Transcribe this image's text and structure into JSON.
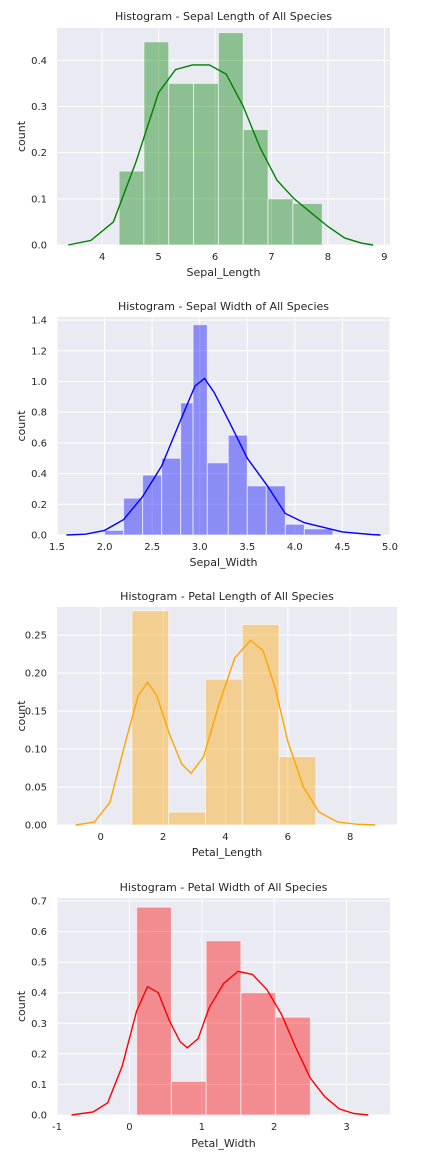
{
  "figure": {
    "background": "#ffffff",
    "axes_background": "#eaeaf2",
    "grid_color": "#ffffff"
  },
  "chart_data": [
    {
      "type": "bar",
      "title": "Histogram - Sepal Length of All Species",
      "xlabel": "Sepal_Length",
      "ylabel": "count",
      "xlim": [
        3.2,
        9.1
      ],
      "ylim": [
        0,
        0.47
      ],
      "xticks": [
        "4",
        "5",
        "6",
        "7",
        "8",
        "9"
      ],
      "yticks": [
        "0.0",
        "0.1",
        "0.2",
        "0.3",
        "0.4"
      ],
      "color": "#008000",
      "bins": [
        {
          "x0": 4.3,
          "x1": 4.74,
          "value": 0.16
        },
        {
          "x0": 4.74,
          "x1": 5.18,
          "value": 0.44
        },
        {
          "x0": 5.18,
          "x1": 5.62,
          "value": 0.35
        },
        {
          "x0": 5.62,
          "x1": 6.06,
          "value": 0.35
        },
        {
          "x0": 6.06,
          "x1": 6.5,
          "value": 0.46
        },
        {
          "x0": 6.5,
          "x1": 6.94,
          "value": 0.25
        },
        {
          "x0": 6.94,
          "x1": 7.38,
          "value": 0.1
        },
        {
          "x0": 7.38,
          "x1": 7.9,
          "value": 0.09
        }
      ],
      "kde": [
        [
          3.4,
          0.0
        ],
        [
          3.8,
          0.01
        ],
        [
          4.2,
          0.05
        ],
        [
          4.6,
          0.18
        ],
        [
          5.0,
          0.33
        ],
        [
          5.3,
          0.38
        ],
        [
          5.6,
          0.39
        ],
        [
          5.9,
          0.39
        ],
        [
          6.2,
          0.37
        ],
        [
          6.5,
          0.3
        ],
        [
          6.8,
          0.21
        ],
        [
          7.1,
          0.14
        ],
        [
          7.4,
          0.1
        ],
        [
          7.7,
          0.07
        ],
        [
          8.0,
          0.04
        ],
        [
          8.3,
          0.015
        ],
        [
          8.6,
          0.004
        ],
        [
          8.8,
          0.0
        ]
      ]
    },
    {
      "type": "bar",
      "title": "Histogram - Sepal Width of All Species",
      "xlabel": "Sepal_Width",
      "ylabel": "count",
      "xlim": [
        1.5,
        5.0
      ],
      "ylim": [
        0,
        1.42
      ],
      "xticks": [
        "1.5",
        "2.0",
        "2.5",
        "3.0",
        "3.5",
        "4.0",
        "4.5",
        "5.0"
      ],
      "yticks": [
        "0.0",
        "0.2",
        "0.4",
        "0.6",
        "0.8",
        "1.0",
        "1.2",
        "1.4"
      ],
      "color": "#0000ff",
      "bins": [
        {
          "x0": 2.0,
          "x1": 2.2,
          "value": 0.03
        },
        {
          "x0": 2.2,
          "x1": 2.4,
          "value": 0.24
        },
        {
          "x0": 2.4,
          "x1": 2.6,
          "value": 0.39
        },
        {
          "x0": 2.6,
          "x1": 2.8,
          "value": 0.5
        },
        {
          "x0": 2.8,
          "x1": 2.93,
          "value": 0.86
        },
        {
          "x0": 2.93,
          "x1": 3.08,
          "value": 1.37
        },
        {
          "x0": 3.08,
          "x1": 3.3,
          "value": 0.47
        },
        {
          "x0": 3.3,
          "x1": 3.5,
          "value": 0.65
        },
        {
          "x0": 3.5,
          "x1": 3.7,
          "value": 0.32
        },
        {
          "x0": 3.7,
          "x1": 3.9,
          "value": 0.32
        },
        {
          "x0": 3.9,
          "x1": 4.1,
          "value": 0.07
        },
        {
          "x0": 4.1,
          "x1": 4.4,
          "value": 0.04
        }
      ],
      "kde": [
        [
          1.6,
          0.0
        ],
        [
          1.8,
          0.005
        ],
        [
          2.0,
          0.03
        ],
        [
          2.2,
          0.1
        ],
        [
          2.4,
          0.25
        ],
        [
          2.6,
          0.45
        ],
        [
          2.8,
          0.75
        ],
        [
          2.95,
          0.97
        ],
        [
          3.05,
          1.02
        ],
        [
          3.15,
          0.93
        ],
        [
          3.3,
          0.75
        ],
        [
          3.5,
          0.5
        ],
        [
          3.7,
          0.33
        ],
        [
          3.9,
          0.14
        ],
        [
          4.1,
          0.08
        ],
        [
          4.3,
          0.05
        ],
        [
          4.5,
          0.02
        ],
        [
          4.8,
          0.003
        ],
        [
          4.9,
          0.0
        ]
      ]
    },
    {
      "type": "bar",
      "title": "Histogram - Petal Length of All Species",
      "xlabel": "Petal_Length",
      "ylabel": "count",
      "xlim": [
        -1.4,
        9.5
      ],
      "ylim": [
        0,
        0.287
      ],
      "xticks": [
        "0",
        "2",
        "4",
        "6",
        "8"
      ],
      "yticks": [
        "0.00",
        "0.05",
        "0.10",
        "0.15",
        "0.20",
        "0.25"
      ],
      "color": "#ffa500",
      "bins": [
        {
          "x0": 1.0,
          "x1": 2.18,
          "value": 0.282
        },
        {
          "x0": 2.18,
          "x1": 3.36,
          "value": 0.017
        },
        {
          "x0": 3.36,
          "x1": 4.54,
          "value": 0.192
        },
        {
          "x0": 4.54,
          "x1": 5.72,
          "value": 0.264
        },
        {
          "x0": 5.72,
          "x1": 6.9,
          "value": 0.09
        }
      ],
      "kde": [
        [
          -0.8,
          0.0
        ],
        [
          -0.2,
          0.004
        ],
        [
          0.3,
          0.03
        ],
        [
          0.8,
          0.11
        ],
        [
          1.2,
          0.17
        ],
        [
          1.5,
          0.188
        ],
        [
          1.8,
          0.17
        ],
        [
          2.2,
          0.12
        ],
        [
          2.6,
          0.08
        ],
        [
          2.9,
          0.068
        ],
        [
          3.3,
          0.09
        ],
        [
          3.8,
          0.16
        ],
        [
          4.3,
          0.22
        ],
        [
          4.8,
          0.243
        ],
        [
          5.2,
          0.23
        ],
        [
          5.6,
          0.18
        ],
        [
          6.0,
          0.11
        ],
        [
          6.5,
          0.05
        ],
        [
          7.0,
          0.017
        ],
        [
          7.6,
          0.004
        ],
        [
          8.2,
          0.001
        ],
        [
          8.8,
          0.0
        ]
      ]
    },
    {
      "type": "bar",
      "title": "Histogram - Petal Width of All Species",
      "xlabel": "Petal_Width",
      "ylabel": "count",
      "xlim": [
        -1.0,
        3.6
      ],
      "ylim": [
        0,
        0.71
      ],
      "xticks": [
        "-1",
        "0",
        "1",
        "2",
        "3"
      ],
      "yticks": [
        "0.0",
        "0.1",
        "0.2",
        "0.3",
        "0.4",
        "0.5",
        "0.6",
        "0.7"
      ],
      "color": "#ff0000",
      "bins": [
        {
          "x0": 0.1,
          "x1": 0.58,
          "value": 0.68
        },
        {
          "x0": 0.58,
          "x1": 1.06,
          "value": 0.11
        },
        {
          "x0": 1.06,
          "x1": 1.54,
          "value": 0.57
        },
        {
          "x0": 1.54,
          "x1": 2.02,
          "value": 0.4
        },
        {
          "x0": 2.02,
          "x1": 2.5,
          "value": 0.32
        }
      ],
      "kde": [
        [
          -0.8,
          0.0
        ],
        [
          -0.5,
          0.01
        ],
        [
          -0.3,
          0.04
        ],
        [
          -0.1,
          0.16
        ],
        [
          0.1,
          0.34
        ],
        [
          0.25,
          0.42
        ],
        [
          0.4,
          0.4
        ],
        [
          0.55,
          0.31
        ],
        [
          0.7,
          0.24
        ],
        [
          0.8,
          0.22
        ],
        [
          0.95,
          0.25
        ],
        [
          1.1,
          0.35
        ],
        [
          1.3,
          0.43
        ],
        [
          1.5,
          0.47
        ],
        [
          1.7,
          0.46
        ],
        [
          1.9,
          0.41
        ],
        [
          2.1,
          0.33
        ],
        [
          2.3,
          0.22
        ],
        [
          2.5,
          0.12
        ],
        [
          2.7,
          0.06
        ],
        [
          2.9,
          0.02
        ],
        [
          3.1,
          0.005
        ],
        [
          3.3,
          0.0
        ]
      ]
    }
  ]
}
